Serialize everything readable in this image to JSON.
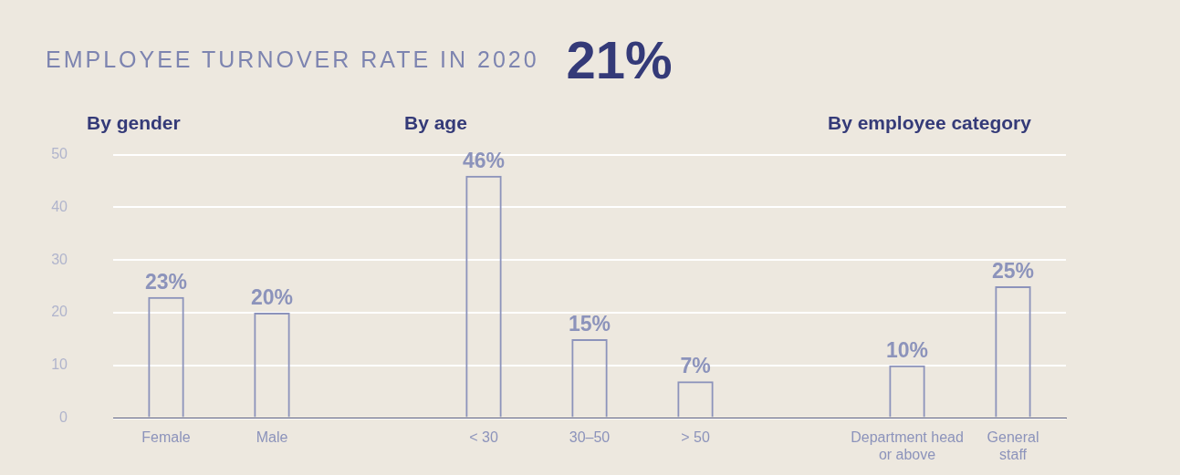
{
  "chart_data": {
    "type": "bar",
    "title": "EMPLOYEE TURNOVER RATE IN 2020",
    "subtitle": "21%",
    "annotations": [
      "By gender",
      "By age",
      "By employee category"
    ],
    "categories": [
      "Female",
      "Male",
      null,
      "< 30",
      "30–50",
      "> 50",
      null,
      "Department head or above",
      "General staff"
    ],
    "values": [
      23,
      20,
      null,
      46,
      15,
      7,
      null,
      10,
      25
    ],
    "value_labels": [
      "23%",
      "20%",
      null,
      "46%",
      "15%",
      "7%",
      null,
      "10%",
      "25%"
    ],
    "color": "#8c93bb",
    "ylim": [
      0,
      50
    ],
    "yticks": [
      0,
      10,
      20,
      30,
      40,
      50
    ],
    "grid": "y",
    "legend": false
  }
}
